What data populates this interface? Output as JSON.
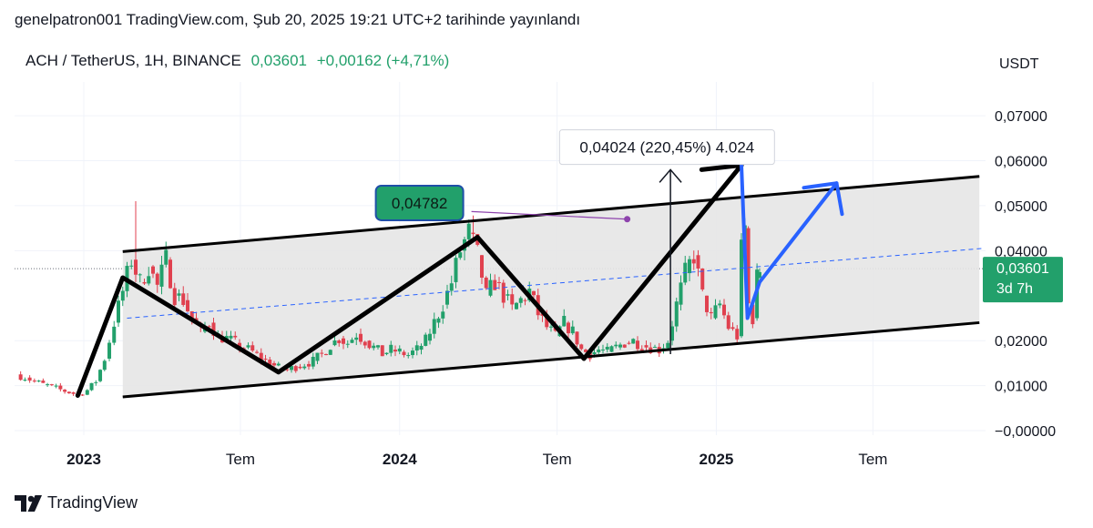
{
  "header": {
    "publish_text": "genelpatron001 TradingView.com, Şub 20, 2025 19:21 UTC+2 tarihinde yayınlandı",
    "symbol": "ACH / TetherUS, 1H, BINANCE",
    "price": "0,03601",
    "change": "+0,00162 (+4,71%)"
  },
  "footer": {
    "brand": "TradingView"
  },
  "colors": {
    "up": "#22a06b",
    "down": "#e0414f",
    "channel_fill": "#e6e6e6",
    "blue": "#2962ff",
    "annotation_green": "#22a06b",
    "callout_purple": "#8e44ad"
  },
  "chart_data": {
    "type": "candlestick",
    "currency": "USDT",
    "ylim": [
      -0.001,
      0.0775
    ],
    "y_ticks": [
      {
        "v": 0.07,
        "label": "0,07000"
      },
      {
        "v": 0.06,
        "label": "0,06000"
      },
      {
        "v": 0.05,
        "label": "0,05000"
      },
      {
        "v": 0.04,
        "label": "0,04000"
      },
      {
        "v": 0.02,
        "label": "0,02000"
      },
      {
        "v": 0.01,
        "label": "0,01000"
      },
      {
        "v": 0.0,
        "label": "−0,00000"
      }
    ],
    "x_ticks": [
      {
        "date": "2023-01-01",
        "label": "2023",
        "bold": true
      },
      {
        "date": "2023-07-01",
        "label": "Tem",
        "bold": false
      },
      {
        "date": "2024-01-01",
        "label": "2024",
        "bold": true
      },
      {
        "date": "2024-07-01",
        "label": "Tem",
        "bold": false
      },
      {
        "date": "2025-01-01",
        "label": "2025",
        "bold": true
      },
      {
        "date": "2025-07-01",
        "label": "Tem",
        "bold": false
      }
    ],
    "current_price": {
      "value": 0.03601,
      "label": "0,03601",
      "countdown": "3d 7h"
    },
    "price_closes": [
      [
        "2022-10-15",
        0.0125
      ],
      [
        "2022-10-25",
        0.0118
      ],
      [
        "2022-11-05",
        0.011
      ],
      [
        "2022-11-15",
        0.0103
      ],
      [
        "2022-11-25",
        0.0098
      ],
      [
        "2022-12-05",
        0.0091
      ],
      [
        "2022-12-15",
        0.0085
      ],
      [
        "2022-12-25",
        0.008
      ],
      [
        "2023-01-05",
        0.009
      ],
      [
        "2023-01-15",
        0.011
      ],
      [
        "2023-01-25",
        0.016
      ],
      [
        "2023-02-05",
        0.024
      ],
      [
        "2023-02-15",
        0.031
      ],
      [
        "2023-02-25",
        0.038
      ],
      [
        "2023-03-07",
        0.033
      ],
      [
        "2023-03-17",
        0.0365
      ],
      [
        "2023-03-27",
        0.032
      ],
      [
        "2023-04-06",
        0.038
      ],
      [
        "2023-04-16",
        0.03
      ],
      [
        "2023-04-26",
        0.029
      ],
      [
        "2023-05-06",
        0.025
      ],
      [
        "2023-05-16",
        0.022
      ],
      [
        "2023-05-26",
        0.024
      ],
      [
        "2023-06-05",
        0.021
      ],
      [
        "2023-06-15",
        0.0205
      ],
      [
        "2023-06-25",
        0.0195
      ],
      [
        "2023-07-05",
        0.0185
      ],
      [
        "2023-07-15",
        0.0175
      ],
      [
        "2023-07-25",
        0.016
      ],
      [
        "2023-08-04",
        0.015
      ],
      [
        "2023-08-14",
        0.014
      ],
      [
        "2023-08-24",
        0.0135
      ],
      [
        "2023-09-03",
        0.0142
      ],
      [
        "2023-09-13",
        0.0148
      ],
      [
        "2023-09-23",
        0.0155
      ],
      [
        "2023-10-03",
        0.017
      ],
      [
        "2023-10-13",
        0.019
      ],
      [
        "2023-10-23",
        0.0205
      ],
      [
        "2023-11-02",
        0.0195
      ],
      [
        "2023-11-12",
        0.0215
      ],
      [
        "2023-11-22",
        0.02
      ],
      [
        "2023-12-02",
        0.0185
      ],
      [
        "2023-12-12",
        0.017
      ],
      [
        "2023-12-22",
        0.018
      ],
      [
        "2024-01-01",
        0.0175
      ],
      [
        "2024-01-11",
        0.0168
      ],
      [
        "2024-01-21",
        0.018
      ],
      [
        "2024-01-31",
        0.02
      ],
      [
        "2024-02-10",
        0.024
      ],
      [
        "2024-02-20",
        0.028
      ],
      [
        "2024-03-01",
        0.033
      ],
      [
        "2024-03-11",
        0.04
      ],
      [
        "2024-03-21",
        0.044
      ],
      [
        "2024-03-31",
        0.039
      ],
      [
        "2024-04-10",
        0.03
      ],
      [
        "2024-04-20",
        0.033
      ],
      [
        "2024-04-30",
        0.03
      ],
      [
        "2024-05-10",
        0.027
      ],
      [
        "2024-05-20",
        0.029
      ],
      [
        "2024-05-30",
        0.031
      ],
      [
        "2024-06-09",
        0.026
      ],
      [
        "2024-06-19",
        0.023
      ],
      [
        "2024-06-29",
        0.021
      ],
      [
        "2024-07-09",
        0.024
      ],
      [
        "2024-07-19",
        0.022
      ],
      [
        "2024-07-29",
        0.018
      ],
      [
        "2024-08-08",
        0.017
      ],
      [
        "2024-08-18",
        0.018
      ],
      [
        "2024-08-28",
        0.0175
      ],
      [
        "2024-09-07",
        0.0185
      ],
      [
        "2024-09-17",
        0.0195
      ],
      [
        "2024-09-27",
        0.02
      ],
      [
        "2024-10-07",
        0.019
      ],
      [
        "2024-10-17",
        0.0185
      ],
      [
        "2024-10-27",
        0.018
      ],
      [
        "2024-11-06",
        0.02
      ],
      [
        "2024-11-16",
        0.028
      ],
      [
        "2024-11-26",
        0.035
      ],
      [
        "2024-12-06",
        0.039
      ],
      [
        "2024-12-16",
        0.03
      ],
      [
        "2024-12-26",
        0.025
      ],
      [
        "2025-01-05",
        0.028
      ],
      [
        "2025-01-15",
        0.023
      ],
      [
        "2025-01-25",
        0.021
      ],
      [
        "2025-01-30",
        0.04
      ],
      [
        "2025-02-03",
        0.045
      ],
      [
        "2025-02-07",
        0.028
      ],
      [
        "2025-02-12",
        0.025
      ],
      [
        "2025-02-17",
        0.034
      ],
      [
        "2025-02-20",
        0.036
      ]
    ],
    "price_extremes": [
      [
        "2023-03-04",
        0.051
      ],
      [
        "2024-03-24",
        0.0478
      ]
    ],
    "drawings": {
      "channel_top": [
        [
          "2023-02-15",
          0.0398
        ],
        [
          "2025-11-01",
          0.0565
        ]
      ],
      "channel_bottom": [
        [
          "2023-02-15",
          0.0075
        ],
        [
          "2025-11-01",
          0.024
        ]
      ],
      "midline": [
        [
          "2023-02-20",
          0.025
        ],
        [
          "2025-11-05",
          0.0405
        ]
      ],
      "zigzag": [
        [
          "2022-12-25",
          0.0078
        ],
        [
          "2023-02-15",
          0.034
        ],
        [
          "2023-08-14",
          0.013
        ],
        [
          "2024-03-31",
          0.043
        ],
        [
          "2024-08-01",
          0.016
        ],
        [
          "2025-01-30",
          0.059
        ]
      ],
      "zigzag_flat_top": [
        [
          "2024-12-15",
          0.058
        ],
        [
          "2025-01-30",
          0.059
        ]
      ],
      "blue_path": [
        [
          "2025-01-30",
          0.059
        ],
        [
          "2025-02-06",
          0.025
        ],
        [
          "2025-02-20",
          0.033
        ],
        [
          "2025-05-20",
          0.055
        ]
      ],
      "blue_arrow_tip": [
        "2025-05-20",
        0.055
      ],
      "up_arrow": {
        "date": "2024-11-09",
        "from": 0.017,
        "to": 0.058
      },
      "callout_line": [
        [
          "2024-03-24",
          0.0487
        ],
        [
          "2024-09-20",
          0.047
        ]
      ],
      "annotations": [
        {
          "label": "0,04782",
          "kind": "price",
          "date": "2024-01-24",
          "value": 0.0506
        },
        {
          "label": "0,04024 (220,45%) 4.024",
          "kind": "measure",
          "date": "2024-11-05",
          "value": 0.063
        }
      ]
    }
  }
}
